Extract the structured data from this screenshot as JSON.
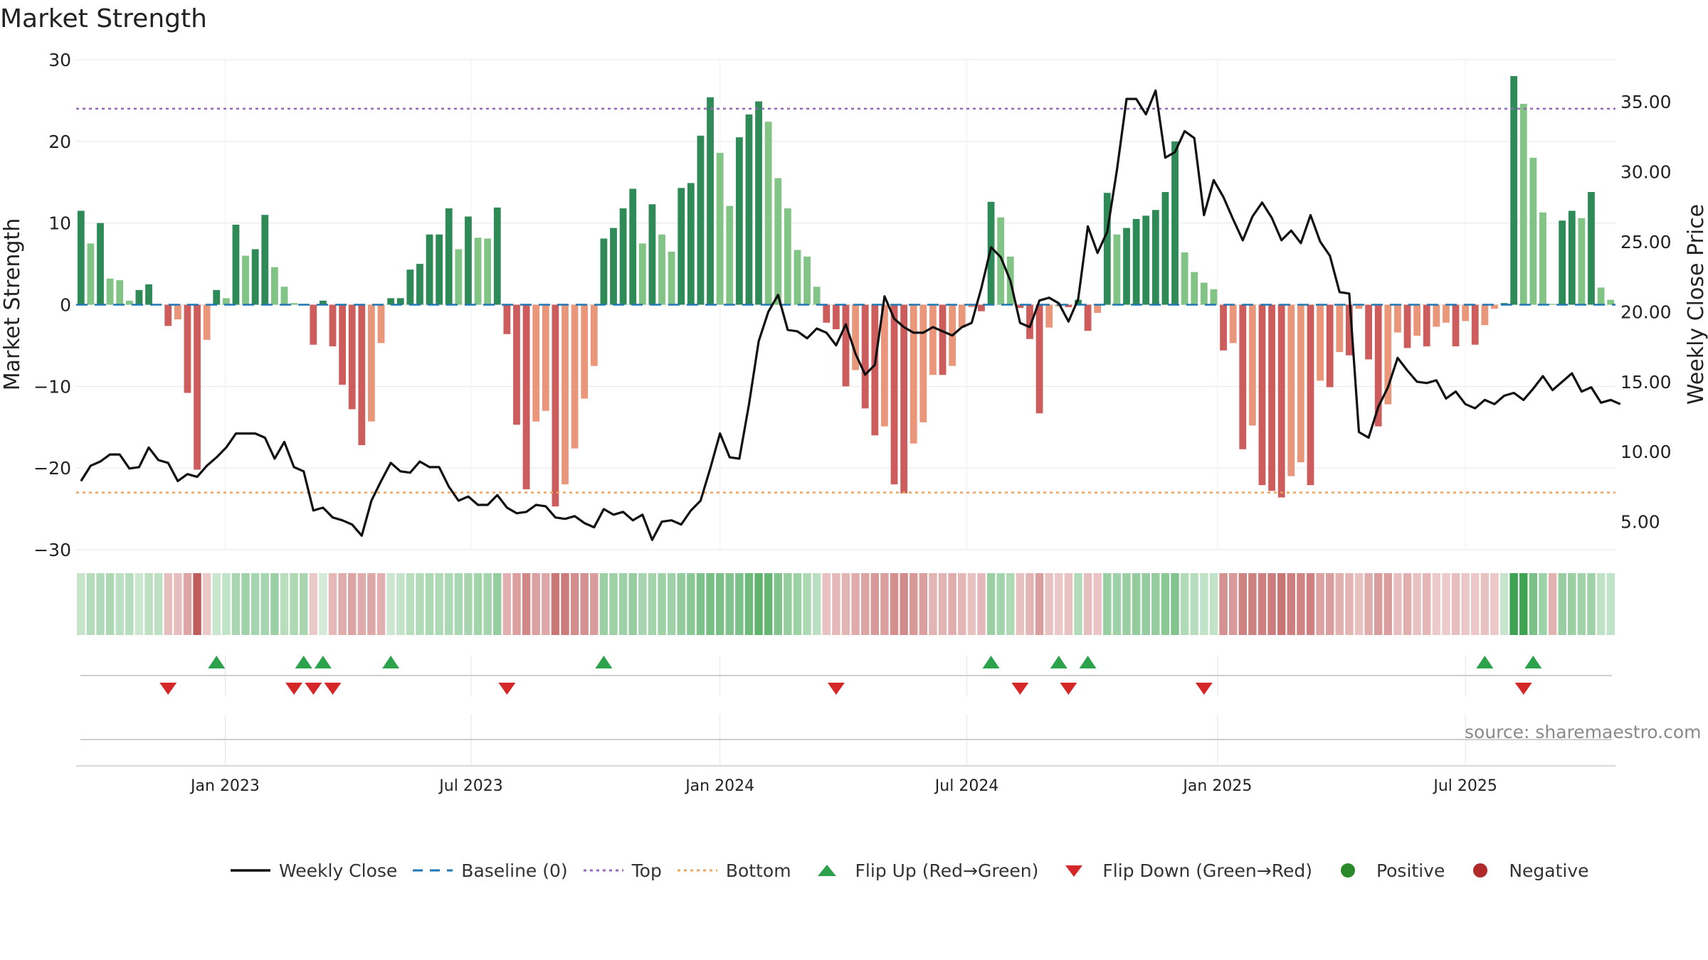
{
  "title": "Market Strength",
  "source": "source: sharemaestro.com",
  "legend": [
    {
      "label": "Weekly Close",
      "symbol": "line",
      "color": "#111111"
    },
    {
      "label": "Baseline (0)",
      "symbol": "dash",
      "color": "#1f77b4"
    },
    {
      "label": "Top",
      "symbol": "dot",
      "color": "#9467bd"
    },
    {
      "label": "Bottom",
      "symbol": "dot",
      "color": "#f0a35e"
    },
    {
      "label": "Flip Up (Red→Green)",
      "symbol": "tri-up",
      "color": "#2ca24c"
    },
    {
      "label": "Flip Down (Green→Red)",
      "symbol": "tri-down",
      "color": "#d62728"
    },
    {
      "label": "Positive",
      "symbol": "circle",
      "color": "#2a8a2a"
    },
    {
      "label": "Negative",
      "symbol": "circle",
      "color": "#b02a2a"
    }
  ],
  "colors": {
    "pos_dark": "#2e8b57",
    "pos_light": "#82c485",
    "neg_dark": "#cd5c5c",
    "neg_light": "#e9967a",
    "close": "#111111",
    "baseline": "#1f77b4",
    "top": "#9467bd",
    "bottom": "#f0a35e",
    "flip_up": "#2ca24c",
    "flip_down": "#d62728"
  },
  "chart_data": {
    "type": "bar",
    "title": "Market Strength",
    "ylabel": "Market Strength",
    "y2label": "Weekly Close Price",
    "ylim": [
      -30,
      30
    ],
    "y2lim": [
      3.0,
      38.0
    ],
    "yticks": [
      "30",
      "20",
      "10",
      "0",
      "−10",
      "−20",
      "−30"
    ],
    "y2ticks": [
      "35.00",
      "30.00",
      "25.00",
      "20.00",
      "15.00",
      "10.00",
      "5.00"
    ],
    "xticks": [
      "Jan 2023",
      "Jul 2023",
      "Jan 2024",
      "Jul 2024",
      "Jan 2025",
      "Jul 2025"
    ],
    "top_level": 24,
    "bottom_level": -23,
    "strength": [
      11.5,
      7.5,
      10.0,
      3.2,
      3.0,
      0.5,
      1.8,
      2.5,
      0.1,
      -2.6,
      -1.8,
      -10.8,
      -20.2,
      -4.3,
      1.8,
      0.8,
      9.8,
      6.0,
      6.8,
      11.0,
      4.6,
      2.2,
      0.2,
      0.1,
      -4.9,
      0.5,
      -5.1,
      -9.8,
      -12.8,
      -17.2,
      -14.3,
      -4.7,
      0.8,
      0.8,
      4.3,
      5.0,
      8.6,
      8.6,
      11.8,
      6.8,
      10.8,
      8.2,
      8.1,
      11.9,
      -3.6,
      -14.7,
      -22.6,
      -14.3,
      -13.0,
      -24.7,
      -22.0,
      -17.6,
      -11.5,
      -7.5,
      8.1,
      9.4,
      11.8,
      14.2,
      7.5,
      12.3,
      8.6,
      6.5,
      14.3,
      14.9,
      20.7,
      25.4,
      18.6,
      12.1,
      20.5,
      23.3,
      24.9,
      22.4,
      15.5,
      11.8,
      6.7,
      5.9,
      2.2,
      -2.2,
      -3.0,
      -10.0,
      -8.0,
      -12.7,
      -16.0,
      -14.9,
      -22.0,
      -23.1,
      -17.0,
      -14.4,
      -8.6,
      -8.6,
      -7.5,
      -2.8,
      -0.3,
      -0.8,
      12.6,
      10.7,
      5.9,
      -0.4,
      -4.2,
      -13.3,
      -2.8,
      -0.2,
      -0.3,
      0.6,
      -3.2,
      -1.0,
      13.7,
      8.6,
      9.4,
      10.5,
      10.9,
      11.6,
      13.8,
      20.0,
      6.4,
      4.0,
      2.7,
      1.9,
      -5.6,
      -4.7,
      -17.7,
      -14.8,
      -22.1,
      -22.8,
      -23.6,
      -21.0,
      -19.3,
      -22.1,
      -9.3,
      -10.1,
      -5.8,
      -6.2,
      -0.5,
      -6.7,
      -14.9,
      -12.2,
      -3.4,
      -5.3,
      -3.8,
      -5.1,
      -2.7,
      -2.2,
      -5.1,
      -2.0,
      -4.9,
      -2.5,
      -0.5,
      0.2,
      28.0,
      24.6,
      18.0,
      11.3,
      0.1,
      10.3,
      11.5,
      10.6,
      13.8,
      2.1,
      0.6
    ],
    "close": [
      7.9,
      9.0,
      9.3,
      9.8,
      9.8,
      8.8,
      8.9,
      10.3,
      9.4,
      9.2,
      7.9,
      8.4,
      8.2,
      9.0,
      9.6,
      10.3,
      11.3,
      11.3,
      11.3,
      11.0,
      9.5,
      10.7,
      8.9,
      8.6,
      5.8,
      6.0,
      5.3,
      5.1,
      4.8,
      4.0,
      6.5,
      7.9,
      9.2,
      8.6,
      8.5,
      9.3,
      8.9,
      8.9,
      7.5,
      6.5,
      6.8,
      6.2,
      6.2,
      6.9,
      6.0,
      5.6,
      5.7,
      6.2,
      6.1,
      5.3,
      5.2,
      5.4,
      4.9,
      4.6,
      5.9,
      5.5,
      5.7,
      5.1,
      5.5,
      3.7,
      5.0,
      5.1,
      4.8,
      5.8,
      6.5,
      8.8,
      11.3,
      9.6,
      9.5,
      13.4,
      17.9,
      20.0,
      21.2,
      18.7,
      18.6,
      18.1,
      18.8,
      18.5,
      17.6,
      19.1,
      17.0,
      15.5,
      16.2,
      21.1,
      19.5,
      18.9,
      18.5,
      18.5,
      18.9,
      18.6,
      18.3,
      18.9,
      19.2,
      21.7,
      24.6,
      23.9,
      22.2,
      19.2,
      18.9,
      20.8,
      21.0,
      20.6,
      19.3,
      20.9,
      26.1,
      24.2,
      25.7,
      30.1,
      35.2,
      35.2,
      34.1,
      35.8,
      31.0,
      31.4,
      32.9,
      32.4,
      26.9,
      29.4,
      28.2,
      26.6,
      25.1,
      26.8,
      27.8,
      26.7,
      25.1,
      25.8,
      24.9,
      26.9,
      25.0,
      24.0,
      21.4,
      21.3,
      11.4,
      11.0,
      13.2,
      14.6,
      16.7,
      15.8,
      15.0,
      14.9,
      15.1,
      13.8,
      14.3,
      13.4,
      13.1,
      13.7,
      13.4,
      14.0,
      14.2,
      13.7,
      14.5,
      15.4,
      14.4,
      15.0,
      15.6,
      14.3,
      14.6,
      13.5,
      13.7,
      13.4
    ]
  },
  "tile_row": [
    0.18,
    0.28,
    0.3,
    0.33,
    0.24,
    0.27,
    0.15,
    0.23,
    0.23,
    -0.24,
    -0.24,
    -0.4,
    -0.88,
    -0.17,
    0.16,
    0.21,
    0.35,
    0.4,
    0.37,
    0.37,
    0.43,
    0.26,
    0.33,
    0.35,
    -0.17,
    0.1,
    -0.28,
    -0.36,
    -0.41,
    -0.36,
    -0.39,
    -0.33,
    0.15,
    0.2,
    0.26,
    0.3,
    0.33,
    0.31,
    0.33,
    0.34,
    0.36,
    0.39,
    0.38,
    0.46,
    -0.33,
    -0.44,
    -0.59,
    -0.43,
    -0.38,
    -0.71,
    -0.68,
    -0.56,
    -0.53,
    -0.47,
    0.43,
    0.42,
    0.41,
    0.46,
    0.36,
    0.38,
    0.42,
    0.4,
    0.48,
    0.53,
    0.6,
    0.65,
    0.63,
    0.58,
    0.61,
    0.7,
    0.78,
    0.76,
    0.59,
    0.46,
    0.42,
    0.33,
    0.24,
    -0.22,
    -0.27,
    -0.3,
    -0.36,
    -0.41,
    -0.48,
    -0.44,
    -0.55,
    -0.58,
    -0.49,
    -0.44,
    -0.3,
    -0.3,
    -0.35,
    -0.29,
    -0.22,
    -0.27,
    0.43,
    0.38,
    0.32,
    -0.22,
    -0.3,
    -0.45,
    -0.22,
    -0.18,
    -0.22,
    0.29,
    -0.24,
    -0.2,
    0.44,
    0.41,
    0.44,
    0.48,
    0.47,
    0.47,
    0.53,
    0.58,
    0.3,
    0.27,
    0.21,
    0.2,
    -0.53,
    -0.48,
    -0.63,
    -0.64,
    -0.65,
    -0.67,
    -0.72,
    -0.65,
    -0.62,
    -0.64,
    -0.42,
    -0.45,
    -0.33,
    -0.3,
    -0.22,
    -0.35,
    -0.46,
    -0.45,
    -0.24,
    -0.34,
    -0.22,
    -0.29,
    -0.16,
    -0.16,
    -0.24,
    -0.18,
    -0.18,
    -0.22,
    -0.18,
    0.17,
    0.98,
    0.98,
    0.62,
    0.42,
    -0.32,
    0.45,
    0.44,
    0.4,
    0.41,
    0.22,
    0.21
  ],
  "flips": {
    "up": [
      14,
      23,
      25,
      32,
      54,
      94,
      101,
      104,
      145,
      150
    ],
    "down": [
      9,
      22,
      24,
      26,
      44,
      78,
      97,
      102,
      116,
      149
    ]
  }
}
